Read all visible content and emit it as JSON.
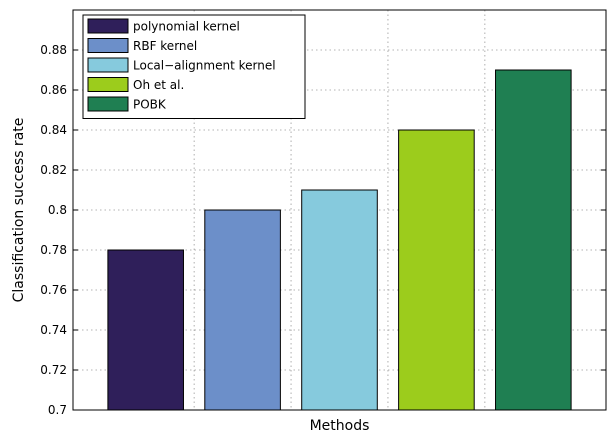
{
  "chart_data": {
    "type": "bar",
    "xlabel": "Methods",
    "ylabel": "Classification success rate",
    "ylim": [
      0.7,
      0.9
    ],
    "yticks": [
      "0.7",
      "0.72",
      "0.74",
      "0.76",
      "0.78",
      "0.8",
      "0.82",
      "0.84",
      "0.86",
      "0.88"
    ],
    "grid": true,
    "legend_position": "top-left",
    "series": [
      {
        "name": "polynomial kernel",
        "value": 0.78,
        "color": "#2f1f5a"
      },
      {
        "name": "RBF kernel",
        "value": 0.8,
        "color": "#6c8fc9"
      },
      {
        "name": "Local−alignment kernel",
        "value": 0.81,
        "color": "#86cadd"
      },
      {
        "name": "Oh et al.",
        "value": 0.84,
        "color": "#9ccc1c"
      },
      {
        "name": "POBK",
        "value": 0.87,
        "color": "#1f7f52"
      }
    ]
  }
}
